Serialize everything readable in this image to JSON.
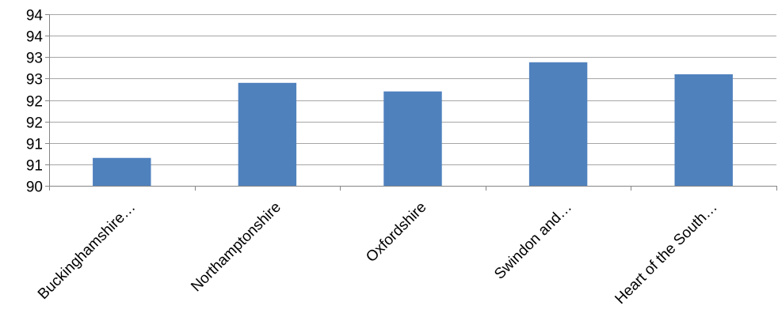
{
  "chart_data": {
    "type": "bar",
    "title": "",
    "xlabel": "",
    "ylabel": "",
    "categories": [
      "Buckinghamshire…",
      "Northamptonshire",
      "Oxfordshire",
      "Swindon and…",
      "Heart of the South…"
    ],
    "values": [
      90.65,
      92.4,
      92.2,
      92.88,
      92.6
    ],
    "ylim": [
      90,
      94
    ],
    "yticks": [
      90,
      90.5,
      91,
      91.5,
      92,
      92.5,
      93,
      93.5,
      94
    ],
    "ytick_labels": [
      "90",
      "91",
      "91",
      "92",
      "92",
      "93",
      "93",
      "94",
      "94"
    ],
    "bar_color": "#4f81bd",
    "grid": true,
    "legend": "none"
  }
}
